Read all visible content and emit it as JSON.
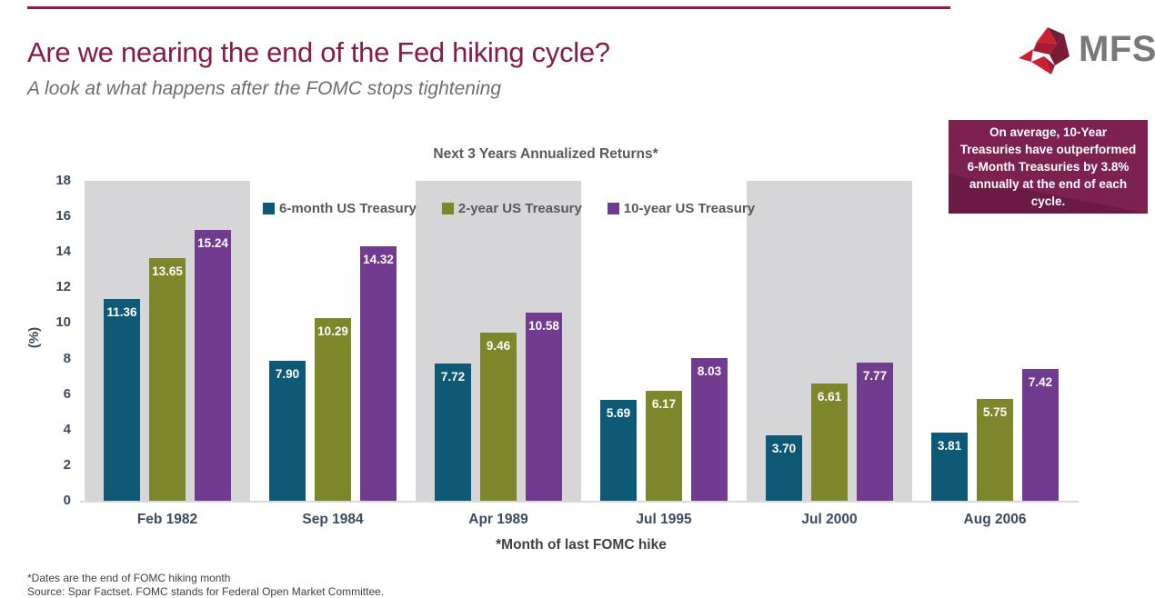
{
  "header": {
    "title": "Are we nearing the end of the Fed hiking cycle?",
    "subtitle": "A look at what happens after the FOMC stops tightening",
    "brand": "MFS",
    "brand_mark": "®"
  },
  "callout": {
    "text": "On average, 10-Year Treasuries have outperformed 6-Month Treasuries by 3.8% annually at the end of each cycle."
  },
  "chart_data": {
    "type": "bar",
    "title": "Next 3 Years Annualized Returns*",
    "xlabel": "*Month of last FOMC hike",
    "ylabel": "(%)",
    "ylim": [
      0,
      18
    ],
    "yticks": [
      0,
      2,
      4,
      6,
      8,
      10,
      12,
      14,
      16,
      18
    ],
    "grid": false,
    "legend_position": "top-inside",
    "categories": [
      "Feb 1982",
      "Sep 1984",
      "Apr 1989",
      "Jul 1995",
      "Jul 2000",
      "Aug 2006"
    ],
    "series": [
      {
        "name": "6-month US Treasury",
        "color": "#0E5A76",
        "values": [
          11.36,
          7.9,
          7.72,
          5.69,
          3.7,
          3.81
        ],
        "labels": [
          "11.36",
          "7.90",
          "7.72",
          "5.69",
          "3.70",
          "3.81"
        ]
      },
      {
        "name": "2-year US Treasury",
        "color": "#7D862B",
        "values": [
          13.65,
          10.29,
          9.46,
          6.17,
          6.61,
          5.75
        ],
        "labels": [
          "13.65",
          "10.29",
          "9.46",
          "6.17",
          "6.61",
          "5.75"
        ]
      },
      {
        "name": "10-year US Treasury",
        "color": "#713B8F",
        "values": [
          15.24,
          14.32,
          10.58,
          8.03,
          7.77,
          7.42
        ],
        "labels": [
          "15.24",
          "14.32",
          "10.58",
          "8.03",
          "7.77",
          "7.42"
        ]
      }
    ],
    "band_color": "#D6D6D8",
    "banded_groups": [
      0,
      2,
      4
    ]
  },
  "footnotes": [
    "*Dates are the end of FOMC hiking month",
    "Source: Spar Factset.  FOMC stands for Federal Open Market Committee."
  ],
  "colors": {
    "accent_maroon": "#861A4A",
    "callout_bg": "#7C2150",
    "subtitle_gray": "#6D6E71",
    "axis_text": "#3B4A5C",
    "chart_text": "#595959"
  }
}
